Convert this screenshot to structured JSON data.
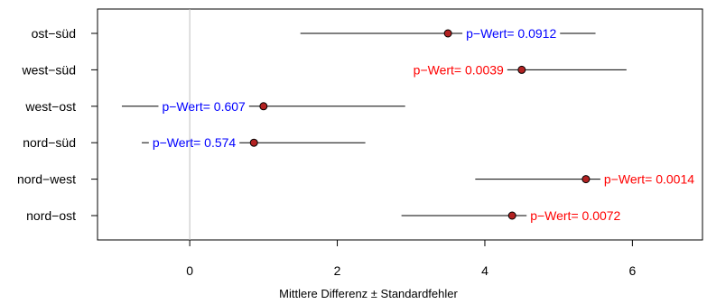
{
  "chart_data": {
    "type": "scatter",
    "xlabel": "Mittlere Differenz ± Standardfehler",
    "xlim": [
      -1.25,
      6.95
    ],
    "xticks": [
      0,
      2,
      4,
      6
    ],
    "xtick_labels": [
      "0",
      "2",
      "4",
      "6"
    ],
    "reference_line_x": 0,
    "colors": {
      "point": "#b22222",
      "significant": "#ff0000",
      "not_significant": "#0000ff",
      "reference_line": "#bebebe"
    },
    "rows": [
      {
        "label": "ost−süd",
        "mean": 3.5,
        "lower": 1.5,
        "upper": 5.5,
        "annotation": "p−Wert= 0.0912",
        "color": "#0000ff"
      },
      {
        "label": "west−süd",
        "mean": 4.5,
        "lower": 3.08,
        "upper": 5.92,
        "annotation": "p−Wert= 0.0039",
        "color": "#ff0000"
      },
      {
        "label": "west−ost",
        "mean": 1.0,
        "lower": -0.92,
        "upper": 2.92,
        "annotation": "p−Wert= 0.607",
        "color": "#0000ff"
      },
      {
        "label": "nord−süd",
        "mean": 0.87,
        "lower": -0.65,
        "upper": 2.38,
        "annotation": "p−Wert= 0.574",
        "color": "#0000ff"
      },
      {
        "label": "nord−west",
        "mean": 5.37,
        "lower": 3.87,
        "upper": 6.87,
        "annotation": "p−Wert= 0.0014",
        "color": "#ff0000"
      },
      {
        "label": "nord−ost",
        "mean": 4.37,
        "lower": 2.87,
        "upper": 5.87,
        "annotation": "p−Wert= 0.0072",
        "color": "#ff0000"
      }
    ]
  }
}
